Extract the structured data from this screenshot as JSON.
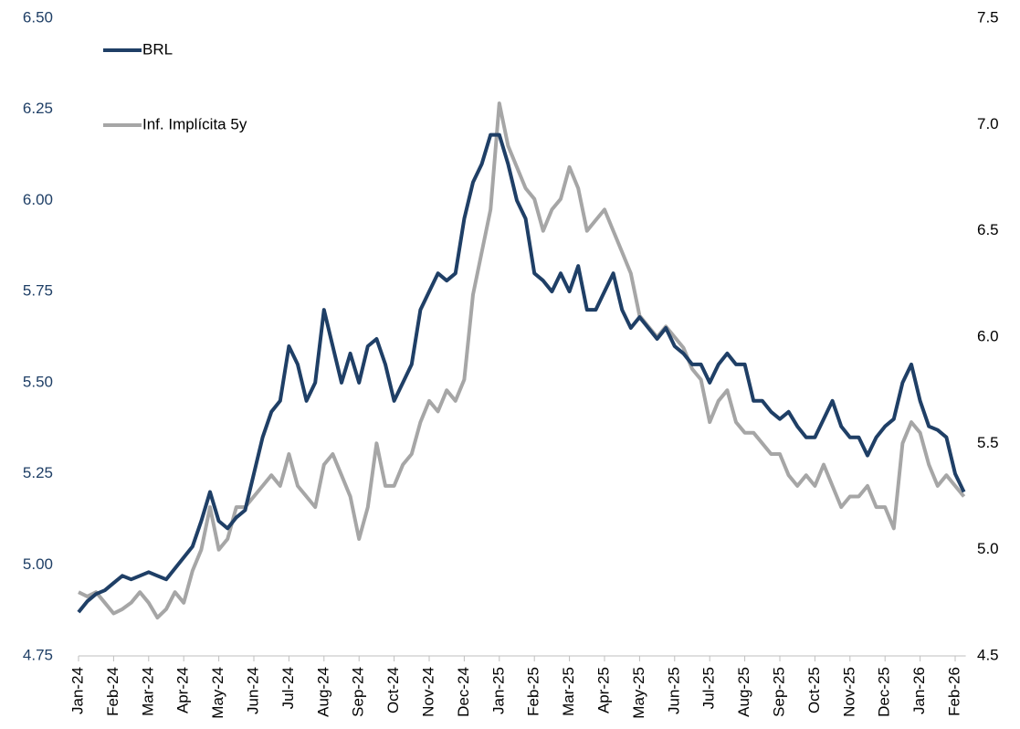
{
  "chart_data": {
    "type": "line",
    "categories": [
      "Jan-24",
      null,
      null,
      null,
      "Feb-24",
      null,
      null,
      null,
      "Mar-24",
      null,
      null,
      null,
      "Apr-24",
      null,
      null,
      null,
      "May-24",
      null,
      null,
      null,
      "Jun-24",
      null,
      null,
      null,
      "Jul-24",
      null,
      null,
      null,
      "Aug-24",
      null,
      null,
      null,
      "Sep-24",
      null,
      null,
      null,
      "Oct-24",
      null,
      null,
      null,
      "Nov-24",
      null,
      null,
      null,
      "Dec-24",
      null,
      null,
      null,
      "Jan-25",
      null,
      null,
      null,
      "Feb-25",
      null,
      null,
      null,
      "Mar-25",
      null,
      null,
      null,
      "Apr-25",
      null,
      null,
      null,
      "May-25",
      null,
      null,
      null,
      "Jun-25",
      null,
      null,
      null,
      "Jul-25",
      null,
      null,
      null,
      "Aug-25",
      null,
      null,
      null,
      "Sep-25",
      null,
      null,
      null,
      "Oct-25",
      null,
      null,
      null,
      "Nov-25",
      null,
      null,
      null,
      "Dec-25",
      null,
      null,
      null,
      "Jan-26",
      null,
      null,
      null,
      "Feb-26",
      null
    ],
    "series": [
      {
        "name": "BRL",
        "color": "#1f3f66",
        "values": [
          4.87,
          4.9,
          4.92,
          4.93,
          4.95,
          4.97,
          4.96,
          4.97,
          4.98,
          4.97,
          4.96,
          4.99,
          5.02,
          5.05,
          5.12,
          5.2,
          5.12,
          5.1,
          5.13,
          5.15,
          5.25,
          5.35,
          5.42,
          5.45,
          5.6,
          5.55,
          5.45,
          5.5,
          5.7,
          5.6,
          5.5,
          5.58,
          5.5,
          5.6,
          5.62,
          5.55,
          5.45,
          5.5,
          5.55,
          5.7,
          5.75,
          5.8,
          5.78,
          5.8,
          5.95,
          6.05,
          6.1,
          6.18,
          6.18,
          6.1,
          6.0,
          5.95,
          5.8,
          5.78,
          5.75,
          5.8,
          5.75,
          5.82,
          5.7,
          5.7,
          5.75,
          5.8,
          5.7,
          5.65,
          5.68,
          5.65,
          5.62,
          5.65,
          5.6,
          5.58,
          5.55,
          5.55,
          5.5,
          5.55,
          5.58,
          5.55,
          5.55,
          5.45,
          5.45,
          5.42,
          5.4,
          5.42,
          5.38,
          5.35,
          5.35,
          5.4,
          5.45,
          5.38,
          5.35,
          5.35,
          5.3,
          5.35,
          5.38,
          5.4,
          5.5,
          5.55,
          5.45,
          5.38,
          5.37,
          5.35,
          5.25,
          5.2
        ]
      },
      {
        "name": "Inf. Implícita 5y",
        "color": "#a6a6a6",
        "axis": "y2",
        "values": [
          4.8,
          4.78,
          4.8,
          4.75,
          4.7,
          4.72,
          4.75,
          4.8,
          4.75,
          4.68,
          4.72,
          4.8,
          4.75,
          4.9,
          5.0,
          5.2,
          5.0,
          5.05,
          5.2,
          5.2,
          5.25,
          5.3,
          5.35,
          5.3,
          5.45,
          5.3,
          5.25,
          5.2,
          5.4,
          5.45,
          5.35,
          5.25,
          5.05,
          5.2,
          5.5,
          5.3,
          5.3,
          5.4,
          5.45,
          5.6,
          5.7,
          5.65,
          5.75,
          5.7,
          5.8,
          6.2,
          6.4,
          6.6,
          7.1,
          6.9,
          6.8,
          6.7,
          6.65,
          6.5,
          6.6,
          6.65,
          6.8,
          6.7,
          6.5,
          6.55,
          6.6,
          6.5,
          6.4,
          6.3,
          6.1,
          6.05,
          6.0,
          6.05,
          6.0,
          5.95,
          5.85,
          5.8,
          5.6,
          5.7,
          5.75,
          5.6,
          5.55,
          5.55,
          5.5,
          5.45,
          5.45,
          5.35,
          5.3,
          5.35,
          5.3,
          5.4,
          5.3,
          5.2,
          5.25,
          5.25,
          5.3,
          5.2,
          5.2,
          5.1,
          5.5,
          5.6,
          5.55,
          5.4,
          5.3,
          5.35,
          5.3,
          5.25
        ]
      }
    ],
    "ylim": [
      4.75,
      6.5
    ],
    "yticks": [
      {
        "value": 4.75,
        "label": "4.75"
      },
      {
        "value": 5,
        "label": "5.00"
      },
      {
        "value": 5.25,
        "label": "5.25"
      },
      {
        "value": 5.5,
        "label": "5.50"
      },
      {
        "value": 5.75,
        "label": "5.75"
      },
      {
        "value": 6,
        "label": "6.00"
      },
      {
        "value": 6.25,
        "label": "6.25"
      },
      {
        "value": 6.5,
        "label": "6.50"
      }
    ],
    "y2lim": [
      4.5,
      7.5
    ],
    "y2ticks": [
      4.5,
      {
        "value": 5,
        "label": "5.0"
      },
      5.5,
      {
        "value": 6,
        "label": "6.0"
      },
      6.5,
      {
        "value": 7,
        "label": "7.0"
      },
      7.5
    ],
    "grid": false
  }
}
